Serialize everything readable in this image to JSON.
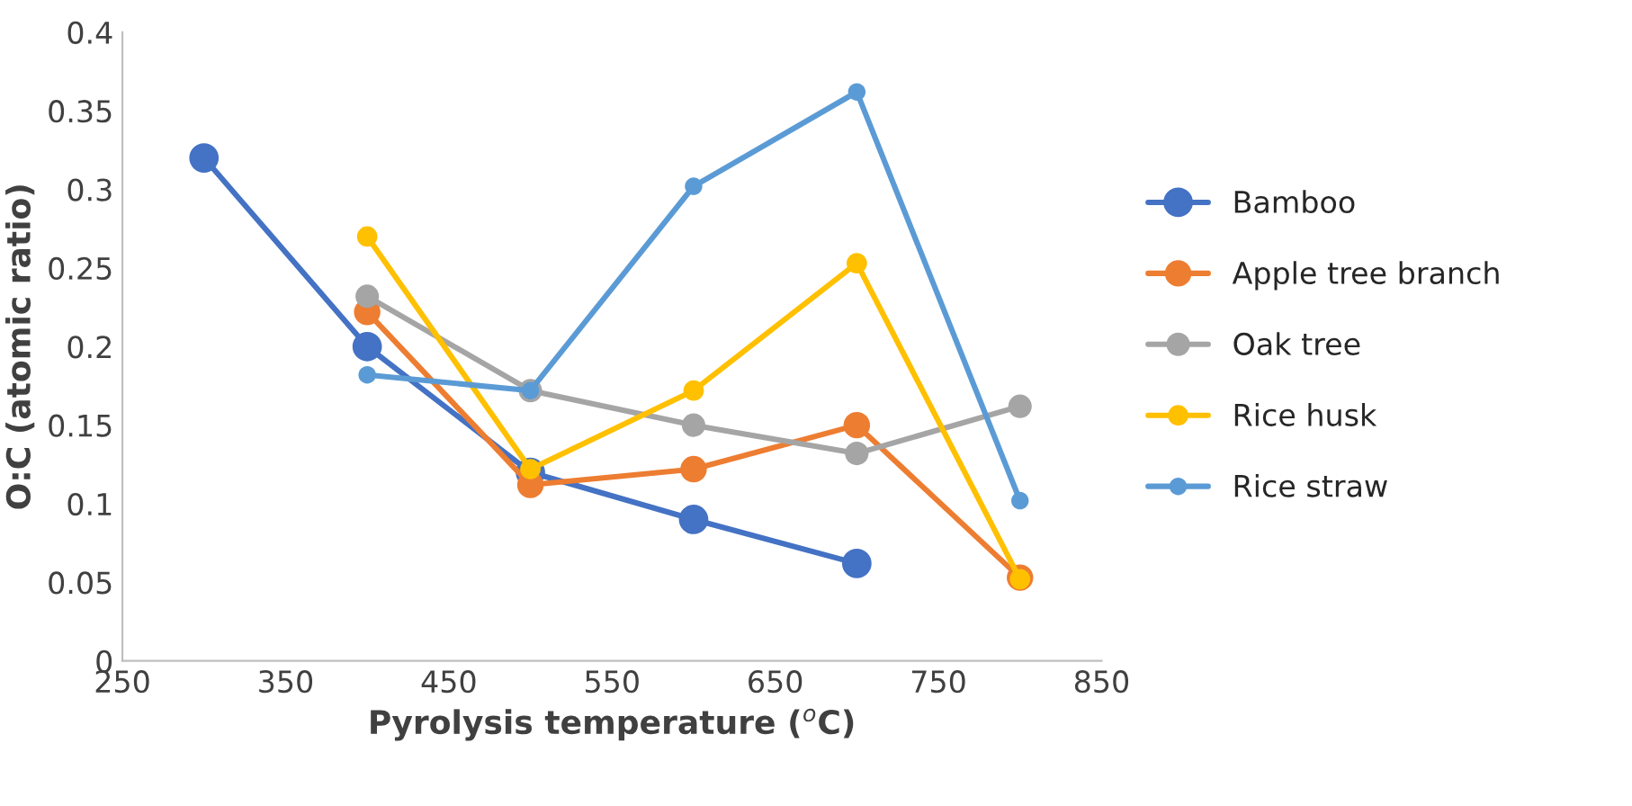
{
  "chart_data": {
    "type": "line",
    "xlabel": "Pyrolysis temperature ($^{o}$C)",
    "ylabel": "O:C (atomic ratio)",
    "xlim": [
      250,
      850
    ],
    "xticks": [
      250,
      350,
      450,
      550,
      650,
      750,
      850
    ],
    "ylim": [
      0,
      0.4
    ],
    "yticks": [
      0,
      0.05,
      0.1,
      0.15,
      0.2,
      0.25,
      0.3,
      0.35,
      0.4
    ],
    "marker": "circle",
    "line_style": "solid",
    "grid": false,
    "legend": "right",
    "series": [
      {
        "name": "Bamboo",
        "color": "#4472c4",
        "x": [
          300,
          400,
          500,
          600,
          700
        ],
        "values": [
          0.32,
          0.2,
          0.12,
          0.09,
          0.062
        ]
      },
      {
        "name": "Apple tree branch",
        "color": "#ed7d31",
        "x": [
          400,
          500,
          600,
          700,
          800
        ],
        "values": [
          0.222,
          0.112,
          0.122,
          0.15,
          0.053
        ]
      },
      {
        "name": "Oak tree",
        "color": "#a5a5a5",
        "x": [
          400,
          500,
          600,
          700,
          800
        ],
        "values": [
          0.232,
          0.172,
          0.15,
          0.132,
          0.162
        ]
      },
      {
        "name": "Rice husk",
        "color": "#ffc000",
        "x": [
          400,
          500,
          600,
          700,
          800
        ],
        "values": [
          0.27,
          0.122,
          0.172,
          0.253,
          0.052
        ]
      },
      {
        "name": "Rice straw",
        "color": "#5b9bd5",
        "x": [
          400,
          500,
          600,
          700,
          800
        ],
        "values": [
          0.182,
          0.172,
          0.302,
          0.362,
          0.102
        ]
      }
    ]
  }
}
